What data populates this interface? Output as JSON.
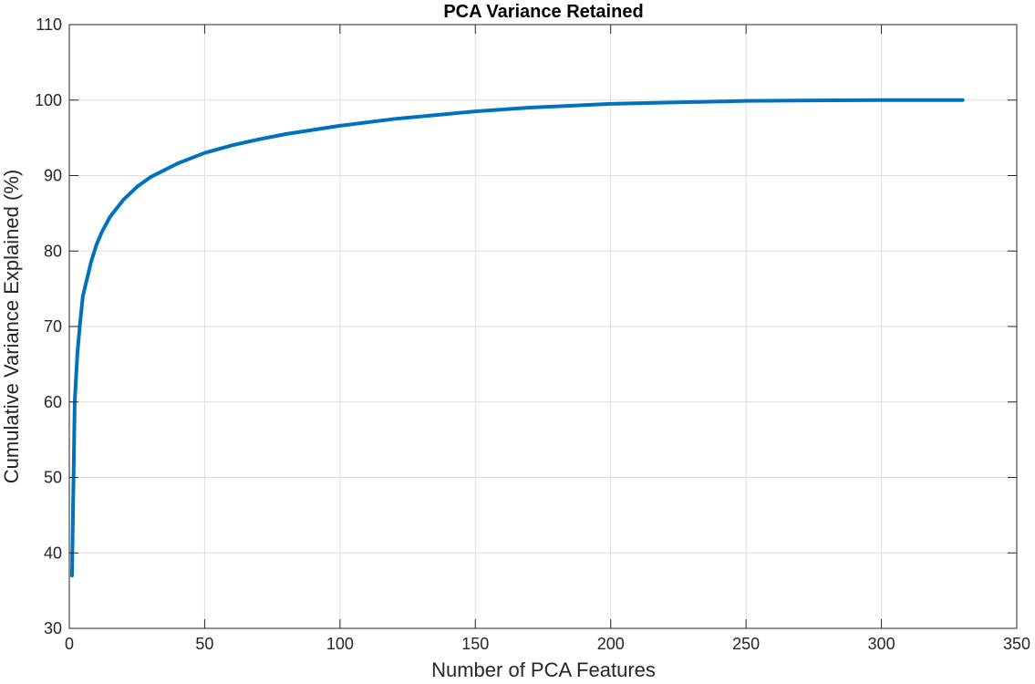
{
  "chart_data": {
    "type": "line",
    "title": "PCA Variance Retained",
    "xlabel": "Number of PCA Features",
    "ylabel": "Cumulative Variance Explained (%)",
    "xlim": [
      0,
      350
    ],
    "ylim": [
      30,
      110
    ],
    "xticks": [
      0,
      50,
      100,
      150,
      200,
      250,
      300,
      350
    ],
    "yticks": [
      30,
      40,
      50,
      60,
      70,
      80,
      90,
      100,
      110
    ],
    "grid": true,
    "series_color": "#0072bd",
    "series": [
      {
        "x": [
          1,
          2,
          3,
          4,
          5,
          6,
          8,
          10,
          12,
          15,
          20,
          25,
          30,
          40,
          50,
          60,
          70,
          80,
          100,
          120,
          150,
          170,
          200,
          250,
          300,
          330
        ],
        "y": [
          37,
          60,
          66.5,
          70.5,
          74,
          75.5,
          78.5,
          80.8,
          82.5,
          84.5,
          86.8,
          88.5,
          89.8,
          91.6,
          93.0,
          94.0,
          94.8,
          95.5,
          96.6,
          97.5,
          98.5,
          99.0,
          99.5,
          99.9,
          100.0,
          100.0
        ]
      }
    ]
  }
}
